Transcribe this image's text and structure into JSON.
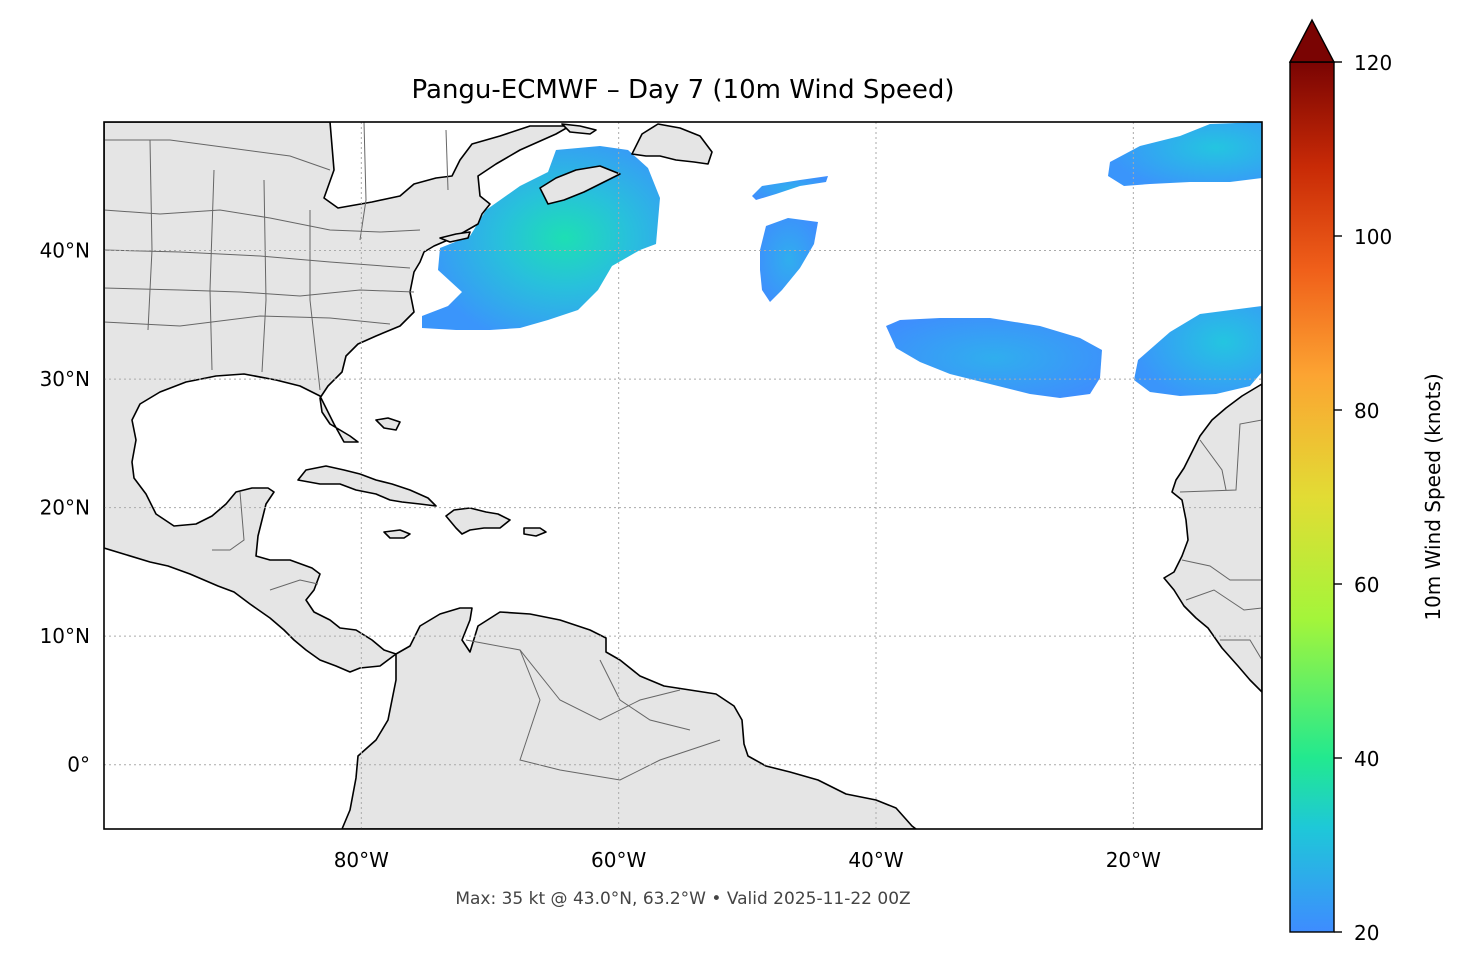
{
  "title": "Pangu-ECMWF – Day 7 (10m Wind Speed)",
  "footer": "Max: 35 kt @ 43.0°N, 63.2°W • Valid 2025-11-22 00Z",
  "map": {
    "lon_range": [
      -100,
      -10
    ],
    "lat_range": [
      -5,
      50
    ],
    "lon_ticks": [
      {
        "value": -80,
        "label": "80°W"
      },
      {
        "value": -60,
        "label": "60°W"
      },
      {
        "value": -40,
        "label": "40°W"
      },
      {
        "value": -20,
        "label": "20°W"
      }
    ],
    "lat_ticks": [
      {
        "value": 40,
        "label": "40°N"
      },
      {
        "value": 30,
        "label": "30°N"
      },
      {
        "value": 20,
        "label": "20°N"
      },
      {
        "value": 10,
        "label": "10°N"
      },
      {
        "value": 0,
        "label": "0°"
      }
    ],
    "land_color": "#e5e5e5",
    "grid": true
  },
  "colorbar": {
    "label": "10m Wind Speed (knots)",
    "min": 20,
    "max": 120,
    "ticks": [
      {
        "value": 120,
        "label": "120"
      },
      {
        "value": 100,
        "label": "100"
      },
      {
        "value": 80,
        "label": "80"
      },
      {
        "value": 60,
        "label": "60"
      },
      {
        "value": 40,
        "label": "40"
      },
      {
        "value": 20,
        "label": "20"
      }
    ],
    "colors": [
      "#3e8cff",
      "#1ec8d8",
      "#22e98f",
      "#a4f53a",
      "#e2dc34",
      "#fca432",
      "#f0601a",
      "#c82a06",
      "#7a0403"
    ]
  },
  "wind_regions": [
    {
      "max_kt": 35
    },
    {
      "max_kt": 24
    },
    {
      "max_kt": 24
    },
    {
      "max_kt": 27
    },
    {
      "max_kt": 28
    }
  ]
}
